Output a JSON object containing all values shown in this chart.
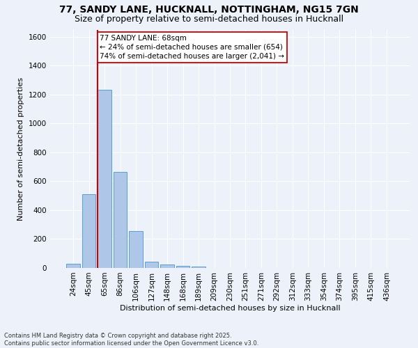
{
  "title1": "77, SANDY LANE, HUCKNALL, NOTTINGHAM, NG15 7GN",
  "title2": "Size of property relative to semi-detached houses in Hucknall",
  "xlabel": "Distribution of semi-detached houses by size in Hucknall",
  "ylabel": "Number of semi-detached properties",
  "categories": [
    "24sqm",
    "45sqm",
    "65sqm",
    "86sqm",
    "106sqm",
    "127sqm",
    "148sqm",
    "168sqm",
    "189sqm",
    "209sqm",
    "230sqm",
    "251sqm",
    "271sqm",
    "292sqm",
    "312sqm",
    "333sqm",
    "354sqm",
    "374sqm",
    "395sqm",
    "415sqm",
    "436sqm"
  ],
  "values": [
    30,
    510,
    1235,
    665,
    255,
    45,
    25,
    15,
    10,
    0,
    0,
    0,
    0,
    0,
    0,
    0,
    0,
    0,
    0,
    0,
    0
  ],
  "bar_color": "#aec6e8",
  "bar_edge_color": "#5a9fd4",
  "red_line_bar_index": 2,
  "red_line_color": "#cc0000",
  "annotation_text": "77 SANDY LANE: 68sqm\n← 24% of semi-detached houses are smaller (654)\n74% of semi-detached houses are larger (2,041) →",
  "annotation_box_color": "#ffffff",
  "annotation_edge_color": "#cc0000",
  "ylim": [
    0,
    1650
  ],
  "yticks": [
    0,
    200,
    400,
    600,
    800,
    1000,
    1200,
    1400,
    1600
  ],
  "footnote": "Contains HM Land Registry data © Crown copyright and database right 2025.\nContains public sector information licensed under the Open Government Licence v3.0.",
  "background_color": "#edf2fa",
  "grid_color": "#ffffff",
  "title_fontsize": 10,
  "subtitle_fontsize": 9,
  "axis_label_fontsize": 8,
  "tick_fontsize": 7.5,
  "annotation_fontsize": 7.5
}
